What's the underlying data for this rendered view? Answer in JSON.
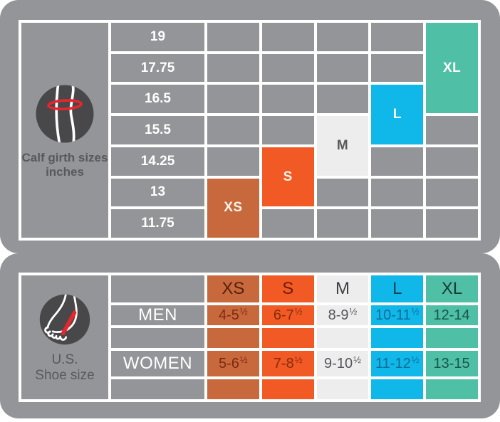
{
  "colors": {
    "page_bg": "#ffffff",
    "panel_gray": "#939598",
    "gridline_white": "#ffffff",
    "icon_circle_dark": "#48484A",
    "icon_line_white": "#ffffff",
    "measure_red": "#E6252C",
    "label_gray_text": "#58595B",
    "row_value_text": "#ffffff"
  },
  "sizes": [
    {
      "label": "XS",
      "bg": "#C8693D",
      "top_label_color": "#FAF3E8",
      "hdr_color": "#57200C",
      "val_color": "#7C2910"
    },
    {
      "label": "S",
      "bg": "#F15A24",
      "top_label_color": "#FAF3E8",
      "hdr_color": "#6E1D06",
      "val_color": "#8A2A0B"
    },
    {
      "label": "M",
      "bg": "#EDEDEE",
      "top_label_color": "#58595B",
      "hdr_color": "#3F4043",
      "val_color": "#55565A"
    },
    {
      "label": "L",
      "bg": "#10B7E9",
      "top_label_color": "#ffffff",
      "hdr_color": "#163C50",
      "val_color": "#0E6C97"
    },
    {
      "label": "XL",
      "bg": "#4FBFA6",
      "top_label_color": "#ffffff",
      "hdr_color": "#183B36",
      "val_color": "#17564C"
    }
  ],
  "calf": {
    "icon": "calf-measure-icon",
    "label_line1": "Calf girth sizes",
    "label_line2": "inches",
    "rows": [
      "19",
      "17.75",
      "16.5",
      "15.5",
      "14.25",
      "13",
      "11.75"
    ],
    "blocks": [
      {
        "size": "XS",
        "row_start": 6,
        "row_span": 2
      },
      {
        "size": "S",
        "row_start": 5,
        "row_span": 2
      },
      {
        "size": "M",
        "row_start": 4,
        "row_span": 2
      },
      {
        "size": "L",
        "row_start": 3,
        "row_span": 2
      },
      {
        "size": "XL",
        "row_start": 1,
        "row_span": 3
      }
    ]
  },
  "shoe": {
    "icon": "foot-measure-icon",
    "label_line1": "U.S.",
    "label_line2": "Shoe size",
    "men": {
      "label": "MEN",
      "values": [
        {
          "base": "4-5",
          "frac": "½"
        },
        {
          "base": "6-7",
          "frac": "½"
        },
        {
          "base": "8-9",
          "frac": "½"
        },
        {
          "base": "10-11",
          "frac": "½"
        },
        {
          "base": "12-14",
          "frac": ""
        }
      ]
    },
    "women": {
      "label": "WOMEN",
      "values": [
        {
          "base": "5-6",
          "frac": "½"
        },
        {
          "base": "7-8",
          "frac": "½"
        },
        {
          "base": "9-10",
          "frac": "½"
        },
        {
          "base": "11-12",
          "frac": "½"
        },
        {
          "base": "13-15",
          "frac": ""
        }
      ]
    }
  },
  "chart_data": [
    {
      "type": "heatmap",
      "title": "Calf girth sizes inches",
      "rows": [
        "19",
        "17.75",
        "16.5",
        "15.5",
        "14.25",
        "13",
        "11.75"
      ],
      "columns": [
        "XS",
        "S",
        "M",
        "L",
        "XL"
      ],
      "size_covers_girth_inches": {
        "XS": [
          "13",
          "11.75"
        ],
        "S": [
          "14.25",
          "13"
        ],
        "M": [
          "15.5",
          "14.25"
        ],
        "L": [
          "16.5",
          "15.5"
        ],
        "XL": [
          "19",
          "17.75",
          "16.5"
        ]
      }
    },
    {
      "type": "table",
      "title": "U.S. Shoe size",
      "columns": [
        "XS",
        "S",
        "M",
        "L",
        "XL"
      ],
      "rows": [
        {
          "label": "MEN",
          "values": [
            "4-5½",
            "6-7½",
            "8-9½",
            "10-11½",
            "12-14"
          ]
        },
        {
          "label": "WOMEN",
          "values": [
            "5-6½",
            "7-8½",
            "9-10½",
            "11-12½",
            "13-15"
          ]
        }
      ]
    }
  ]
}
